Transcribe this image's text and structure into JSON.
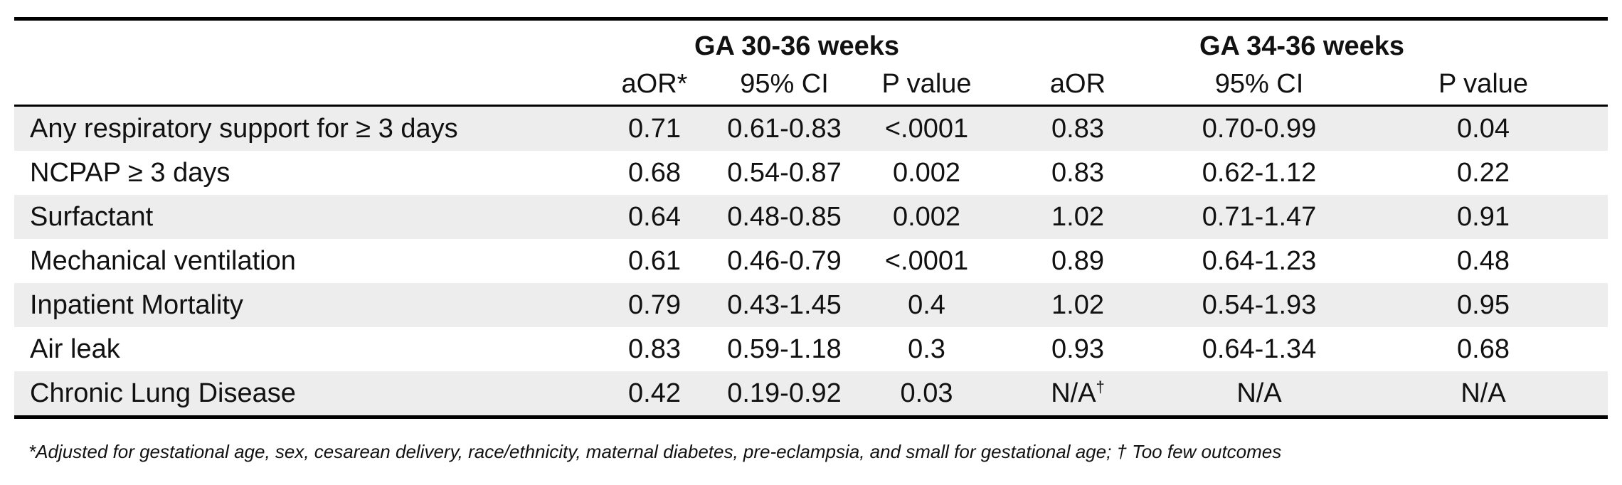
{
  "table": {
    "groups": [
      "GA 30-36 weeks",
      "GA 34-36 weeks"
    ],
    "columns": [
      "aOR*",
      "95% CI",
      "P value",
      "aOR",
      "95% CI",
      "P value"
    ],
    "rows": [
      {
        "label": "Any respiratory support for ≥ 3 days",
        "values": [
          "0.71",
          "0.61-0.83",
          "<.0001",
          "0.83",
          "0.70-0.99",
          "0.04"
        ]
      },
      {
        "label": "NCPAP ≥ 3 days",
        "values": [
          "0.68",
          "0.54-0.87",
          "0.002",
          "0.83",
          "0.62-1.12",
          "0.22"
        ]
      },
      {
        "label": "Surfactant",
        "values": [
          "0.64",
          "0.48-0.85",
          "0.002",
          "1.02",
          "0.71-1.47",
          "0.91"
        ]
      },
      {
        "label": "Mechanical ventilation",
        "values": [
          "0.61",
          "0.46-0.79",
          "<.0001",
          "0.89",
          "0.64-1.23",
          "0.48"
        ]
      },
      {
        "label": "Inpatient Mortality",
        "values": [
          "0.79",
          "0.43-1.45",
          "0.4",
          "1.02",
          "0.54-1.93",
          "0.95"
        ]
      },
      {
        "label": "Air leak",
        "values": [
          "0.83",
          "0.59-1.18",
          "0.3",
          "0.93",
          "0.64-1.34",
          "0.68"
        ]
      },
      {
        "label": "Chronic Lung Disease",
        "values": [
          "0.42",
          "0.19-0.92",
          "0.03",
          "N/A",
          "N/A",
          "N/A"
        ]
      }
    ],
    "dagger": "†"
  },
  "footnote": "*Adjusted  for gestational age, sex, cesarean delivery, race/ethnicity, maternal diabetes, pre-eclampsia, and small for gestational age; † Too few outcomes",
  "colors": {
    "shade": "#ededed",
    "rule": "#000000"
  }
}
